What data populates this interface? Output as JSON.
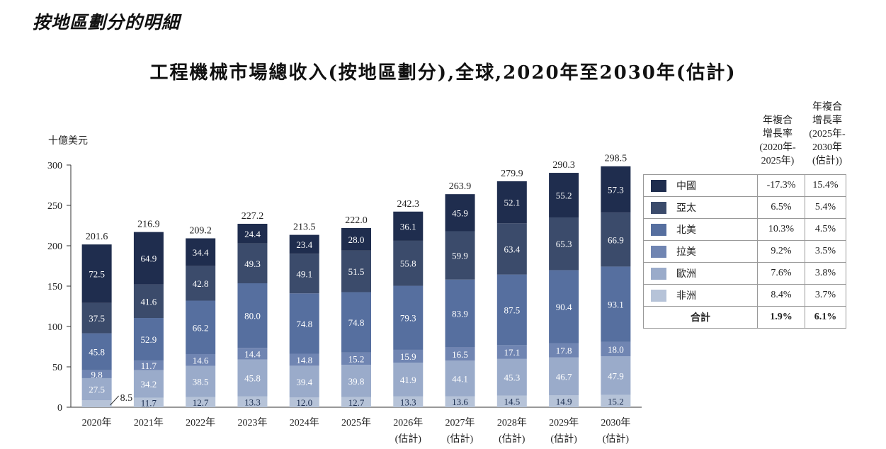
{
  "heading": "按地區劃分的明細",
  "chart_data": {
    "type": "bar",
    "stacked": true,
    "title": "工程機械市場總收入(按地區劃分),全球,2020年至2030年(估計)",
    "ylabel": "十億美元",
    "xlabel": "",
    "ylim": [
      0,
      300
    ],
    "yticks": [
      0,
      50,
      100,
      150,
      200,
      250,
      300
    ],
    "categories": [
      "2020年",
      "2021年",
      "2022年",
      "2023年",
      "2024年",
      "2025年",
      "2026年",
      "2027年",
      "2028年",
      "2029年",
      "2030年"
    ],
    "category_notes": [
      "",
      "",
      "",
      "",
      "",
      "",
      "(估計)",
      "(估計)",
      "(估計)",
      "(估計)",
      "(估計)"
    ],
    "series": [
      {
        "name": "非洲",
        "color": "#b6c3d8",
        "values": [
          8.5,
          11.7,
          12.7,
          13.3,
          12.0,
          12.7,
          13.3,
          13.6,
          14.5,
          14.9,
          15.2
        ]
      },
      {
        "name": "歐洲",
        "color": "#9aabca",
        "values": [
          27.5,
          34.2,
          38.5,
          45.8,
          39.4,
          39.8,
          41.9,
          44.1,
          45.3,
          46.7,
          47.9
        ]
      },
      {
        "name": "拉美",
        "color": "#7085b2",
        "values": [
          9.8,
          11.7,
          14.6,
          14.4,
          14.8,
          15.2,
          15.9,
          16.5,
          17.1,
          17.8,
          18.0
        ]
      },
      {
        "name": "北美",
        "color": "#566f9f",
        "values": [
          45.8,
          52.9,
          66.2,
          80.0,
          74.8,
          74.8,
          79.3,
          83.9,
          87.5,
          90.4,
          93.1
        ]
      },
      {
        "name": "亞太",
        "color": "#3b4b6b",
        "values": [
          37.5,
          41.6,
          42.8,
          49.3,
          49.1,
          51.5,
          55.8,
          59.9,
          63.4,
          65.3,
          66.9
        ]
      },
      {
        "name": "中國",
        "color": "#1f2d4e",
        "values": [
          72.5,
          64.9,
          34.4,
          24.4,
          23.4,
          28.0,
          36.1,
          45.9,
          52.1,
          55.2,
          57.3
        ]
      }
    ],
    "totals": [
      201.6,
      216.9,
      209.2,
      227.2,
      213.5,
      222.0,
      242.3,
      263.9,
      279.9,
      290.3,
      298.5
    ],
    "outside_label": {
      "category": "2020年",
      "series": "非洲",
      "text": "8.5"
    }
  },
  "cagr_table": {
    "header_1": [
      "年複合",
      "增長率",
      "(2020年-",
      "2025年)"
    ],
    "header_2": [
      "年複合",
      "增長率",
      "(2025年-",
      "2030年",
      "(估計))"
    ],
    "rows": [
      {
        "name": "中國",
        "color": "#1f2d4e",
        "cagr_2020_2025": "-17.3%",
        "cagr_2025_2030": "15.4%"
      },
      {
        "name": "亞太",
        "color": "#3b4b6b",
        "cagr_2020_2025": "6.5%",
        "cagr_2025_2030": "5.4%"
      },
      {
        "name": "北美",
        "color": "#566f9f",
        "cagr_2020_2025": "10.3%",
        "cagr_2025_2030": "4.5%"
      },
      {
        "name": "拉美",
        "color": "#7085b2",
        "cagr_2020_2025": "9.2%",
        "cagr_2025_2030": "3.5%"
      },
      {
        "name": "歐洲",
        "color": "#9aabca",
        "cagr_2020_2025": "7.6%",
        "cagr_2025_2030": "3.8%"
      },
      {
        "name": "非洲",
        "color": "#b6c3d8",
        "cagr_2020_2025": "8.4%",
        "cagr_2025_2030": "3.7%"
      }
    ],
    "total": {
      "name": "合計",
      "cagr_2020_2025": "1.9%",
      "cagr_2025_2030": "6.1%"
    }
  }
}
